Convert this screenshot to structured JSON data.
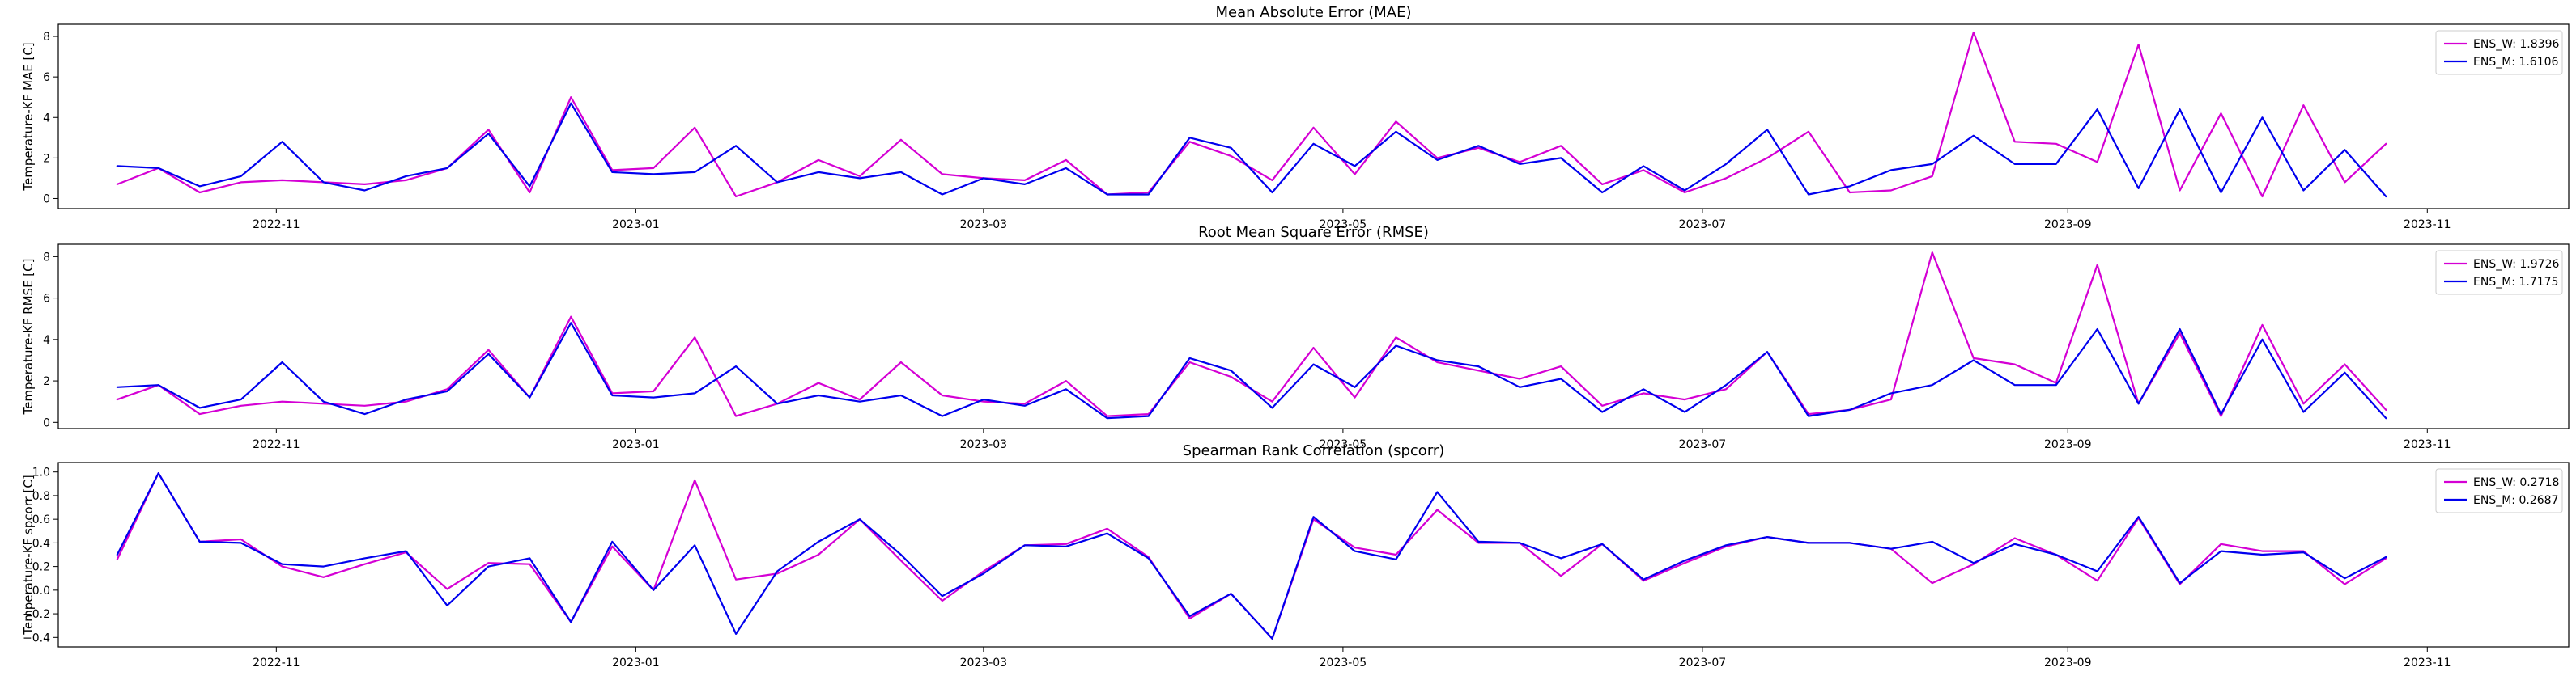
{
  "chart_data": [
    {
      "type": "line",
      "title": "Mean Absolute Error (MAE)",
      "xlabel": "",
      "ylabel": "Temperature-KF MAE [C]",
      "x_type": "date",
      "xlim": [
        "2022-09-25",
        "2023-11-25"
      ],
      "ylim": [
        -0.5,
        8.6
      ],
      "yticks": [
        0,
        2,
        4,
        6,
        8
      ],
      "xticks": [
        "2022-11",
        "2023-01",
        "2023-03",
        "2023-05",
        "2023-07",
        "2023-09",
        "2023-11"
      ],
      "grid": false,
      "legend": "top-right",
      "x": [
        "2022-10-05",
        "2022-10-12",
        "2022-10-19",
        "2022-10-26",
        "2022-11-02",
        "2022-11-09",
        "2022-11-16",
        "2022-11-23",
        "2022-11-30",
        "2022-12-07",
        "2022-12-14",
        "2022-12-21",
        "2022-12-28",
        "2023-01-04",
        "2023-01-11",
        "2023-01-18",
        "2023-01-25",
        "2023-02-01",
        "2023-02-08",
        "2023-02-15",
        "2023-02-22",
        "2023-03-01",
        "2023-03-08",
        "2023-03-15",
        "2023-03-22",
        "2023-03-29",
        "2023-04-05",
        "2023-04-12",
        "2023-04-19",
        "2023-04-26",
        "2023-05-03",
        "2023-05-10",
        "2023-05-17",
        "2023-05-24",
        "2023-05-31",
        "2023-06-07",
        "2023-06-14",
        "2023-06-21",
        "2023-06-28",
        "2023-07-05",
        "2023-07-12",
        "2023-07-19",
        "2023-07-26",
        "2023-08-02",
        "2023-08-09",
        "2023-08-16",
        "2023-08-23",
        "2023-08-30",
        "2023-09-06",
        "2023-09-13",
        "2023-09-20",
        "2023-09-27",
        "2023-10-04",
        "2023-10-11",
        "2023-10-18",
        "2023-10-25"
      ],
      "series": [
        {
          "name": "ENS_W: 1.8396",
          "color": "#d400d4",
          "values": [
            0.7,
            1.5,
            0.3,
            0.8,
            0.9,
            0.8,
            0.7,
            0.9,
            1.5,
            3.4,
            0.3,
            5.0,
            1.4,
            1.5,
            3.5,
            0.1,
            0.8,
            1.9,
            1.1,
            2.9,
            1.2,
            1.0,
            0.9,
            1.9,
            0.2,
            0.3,
            2.8,
            2.1,
            0.9,
            3.5,
            1.2,
            3.8,
            2.0,
            2.5,
            1.8,
            2.6,
            0.7,
            1.4,
            0.3,
            1.0,
            2.0,
            3.3,
            0.3,
            0.4,
            1.1,
            8.2,
            2.8,
            2.7,
            1.8,
            7.6,
            0.4,
            4.2,
            0.1,
            4.6,
            0.8,
            2.7
          ]
        },
        {
          "name": "ENS_M: 1.6106",
          "color": "#0000ee",
          "values": [
            1.6,
            1.5,
            0.6,
            1.1,
            2.8,
            0.8,
            0.4,
            1.1,
            1.5,
            3.2,
            0.6,
            4.7,
            1.3,
            1.2,
            1.3,
            2.6,
            0.8,
            1.3,
            1.0,
            1.3,
            0.2,
            1.0,
            0.7,
            1.5,
            0.2,
            0.2,
            3.0,
            2.5,
            0.3,
            2.7,
            1.6,
            3.3,
            1.9,
            2.6,
            1.7,
            2.0,
            0.3,
            1.6,
            0.4,
            1.7,
            3.4,
            0.2,
            0.6,
            1.4,
            1.7,
            3.1,
            1.7,
            1.7,
            4.4,
            0.5,
            4.4,
            0.3,
            4.0,
            0.4,
            2.4,
            0.1
          ]
        }
      ]
    },
    {
      "type": "line",
      "title": "Root Mean Square Error (RMSE)",
      "xlabel": "",
      "ylabel": "Temperature-KF RMSE [C]",
      "x_type": "date",
      "xlim": [
        "2022-09-25",
        "2023-11-25"
      ],
      "ylim": [
        -0.3,
        8.6
      ],
      "yticks": [
        0,
        2,
        4,
        6,
        8
      ],
      "xticks": [
        "2022-11",
        "2023-01",
        "2023-03",
        "2023-05",
        "2023-07",
        "2023-09",
        "2023-11"
      ],
      "grid": false,
      "legend": "top-right",
      "x": [
        "2022-10-05",
        "2022-10-12",
        "2022-10-19",
        "2022-10-26",
        "2022-11-02",
        "2022-11-09",
        "2022-11-16",
        "2022-11-23",
        "2022-11-30",
        "2022-12-07",
        "2022-12-14",
        "2022-12-21",
        "2022-12-28",
        "2023-01-04",
        "2023-01-11",
        "2023-01-18",
        "2023-01-25",
        "2023-02-01",
        "2023-02-08",
        "2023-02-15",
        "2023-02-22",
        "2023-03-01",
        "2023-03-08",
        "2023-03-15",
        "2023-03-22",
        "2023-03-29",
        "2023-04-05",
        "2023-04-12",
        "2023-04-19",
        "2023-04-26",
        "2023-05-03",
        "2023-05-10",
        "2023-05-17",
        "2023-05-24",
        "2023-05-31",
        "2023-06-07",
        "2023-06-14",
        "2023-06-21",
        "2023-06-28",
        "2023-07-05",
        "2023-07-12",
        "2023-07-19",
        "2023-07-26",
        "2023-08-02",
        "2023-08-09",
        "2023-08-16",
        "2023-08-23",
        "2023-08-30",
        "2023-09-06",
        "2023-09-13",
        "2023-09-20",
        "2023-09-27",
        "2023-10-04",
        "2023-10-11",
        "2023-10-18",
        "2023-10-25"
      ],
      "series": [
        {
          "name": "ENS_W: 1.9726",
          "color": "#d400d4",
          "values": [
            1.1,
            1.8,
            0.4,
            0.8,
            1.0,
            0.9,
            0.8,
            1.0,
            1.6,
            3.5,
            1.2,
            5.1,
            1.4,
            1.5,
            4.1,
            0.3,
            0.9,
            1.9,
            1.1,
            2.9,
            1.3,
            1.0,
            0.9,
            2.0,
            0.3,
            0.4,
            2.9,
            2.2,
            1.0,
            3.6,
            1.2,
            4.1,
            2.9,
            2.5,
            2.1,
            2.7,
            0.8,
            1.4,
            1.1,
            1.6,
            3.4,
            0.4,
            0.6,
            1.1,
            8.2,
            3.1,
            2.8,
            1.9,
            7.6,
            0.9,
            4.3,
            0.3,
            4.7,
            0.9,
            2.8,
            0.6
          ]
        },
        {
          "name": "ENS_M: 1.7175",
          "color": "#0000ee",
          "values": [
            1.7,
            1.8,
            0.7,
            1.1,
            2.9,
            1.0,
            0.4,
            1.1,
            1.5,
            3.3,
            1.2,
            4.8,
            1.3,
            1.2,
            1.4,
            2.7,
            0.9,
            1.3,
            1.0,
            1.3,
            0.3,
            1.1,
            0.8,
            1.6,
            0.2,
            0.3,
            3.1,
            2.5,
            0.7,
            2.8,
            1.7,
            3.7,
            3.0,
            2.7,
            1.7,
            2.1,
            0.5,
            1.6,
            0.5,
            1.8,
            3.4,
            0.3,
            0.6,
            1.4,
            1.8,
            3.0,
            1.8,
            1.8,
            4.5,
            0.9,
            4.5,
            0.4,
            4.0,
            0.5,
            2.4,
            0.2
          ]
        }
      ]
    },
    {
      "type": "line",
      "title": "Spearman Rank Correlation (spcorr)",
      "xlabel": "",
      "ylabel": "Temperature-KF spcorr [C]",
      "x_type": "date",
      "xlim": [
        "2022-09-25",
        "2023-11-25"
      ],
      "ylim": [
        -0.48,
        1.08
      ],
      "yticks": [
        -0.4,
        -0.2,
        0.0,
        0.2,
        0.4,
        0.6,
        0.8,
        1.0
      ],
      "ytick_labels": [
        "−0.4",
        "−0.2",
        "0.0",
        "0.2",
        "0.4",
        "0.6",
        "0.8",
        "1.0"
      ],
      "xticks": [
        "2022-11",
        "2023-01",
        "2023-03",
        "2023-05",
        "2023-07",
        "2023-09",
        "2023-11"
      ],
      "grid": false,
      "legend": "top-right",
      "x": [
        "2022-10-05",
        "2022-10-12",
        "2022-10-19",
        "2022-10-26",
        "2022-11-02",
        "2022-11-09",
        "2022-11-16",
        "2022-11-23",
        "2022-11-30",
        "2022-12-07",
        "2022-12-14",
        "2022-12-21",
        "2022-12-28",
        "2023-01-04",
        "2023-01-11",
        "2023-01-18",
        "2023-01-25",
        "2023-02-01",
        "2023-02-08",
        "2023-02-15",
        "2023-02-22",
        "2023-03-01",
        "2023-03-08",
        "2023-03-15",
        "2023-03-22",
        "2023-03-29",
        "2023-04-05",
        "2023-04-12",
        "2023-04-19",
        "2023-04-26",
        "2023-05-03",
        "2023-05-10",
        "2023-05-17",
        "2023-05-24",
        "2023-05-31",
        "2023-06-07",
        "2023-06-14",
        "2023-06-21",
        "2023-06-28",
        "2023-07-05",
        "2023-07-12",
        "2023-07-19",
        "2023-07-26",
        "2023-08-02",
        "2023-08-09",
        "2023-08-16",
        "2023-08-23",
        "2023-08-30",
        "2023-09-06",
        "2023-09-13",
        "2023-09-20",
        "2023-09-27",
        "2023-10-04",
        "2023-10-11",
        "2023-10-18",
        "2023-10-25"
      ],
      "series": [
        {
          "name": "ENS_W: 0.2718",
          "color": "#d400d4",
          "values": [
            0.26,
            0.99,
            0.41,
            0.43,
            0.2,
            0.11,
            0.22,
            0.32,
            0.01,
            0.23,
            0.22,
            -0.27,
            0.37,
            0.0,
            0.93,
            0.09,
            0.14,
            0.3,
            0.6,
            0.25,
            -0.09,
            0.16,
            0.38,
            0.39,
            0.52,
            0.28,
            -0.24,
            -0.03,
            -0.41,
            0.6,
            0.36,
            0.3,
            0.68,
            0.4,
            0.4,
            0.12,
            0.39,
            0.08,
            0.23,
            0.37,
            0.45,
            0.4,
            0.4,
            0.35,
            0.06,
            0.22,
            0.44,
            0.3,
            0.08,
            0.61,
            0.05,
            0.39,
            0.33,
            0.33,
            0.05,
            0.27
          ]
        },
        {
          "name": "ENS_M: 0.2687",
          "color": "#0000ee",
          "values": [
            0.3,
            0.99,
            0.41,
            0.4,
            0.22,
            0.2,
            0.27,
            0.33,
            -0.13,
            0.2,
            0.27,
            -0.27,
            0.41,
            0.0,
            0.38,
            -0.37,
            0.16,
            0.41,
            0.6,
            0.3,
            -0.05,
            0.14,
            0.38,
            0.37,
            0.48,
            0.27,
            -0.22,
            -0.03,
            -0.41,
            0.62,
            0.33,
            0.26,
            0.83,
            0.41,
            0.4,
            0.27,
            0.39,
            0.09,
            0.25,
            0.38,
            0.45,
            0.4,
            0.4,
            0.35,
            0.41,
            0.23,
            0.39,
            0.3,
            0.16,
            0.62,
            0.06,
            0.33,
            0.3,
            0.32,
            0.1,
            0.28
          ]
        }
      ]
    }
  ]
}
